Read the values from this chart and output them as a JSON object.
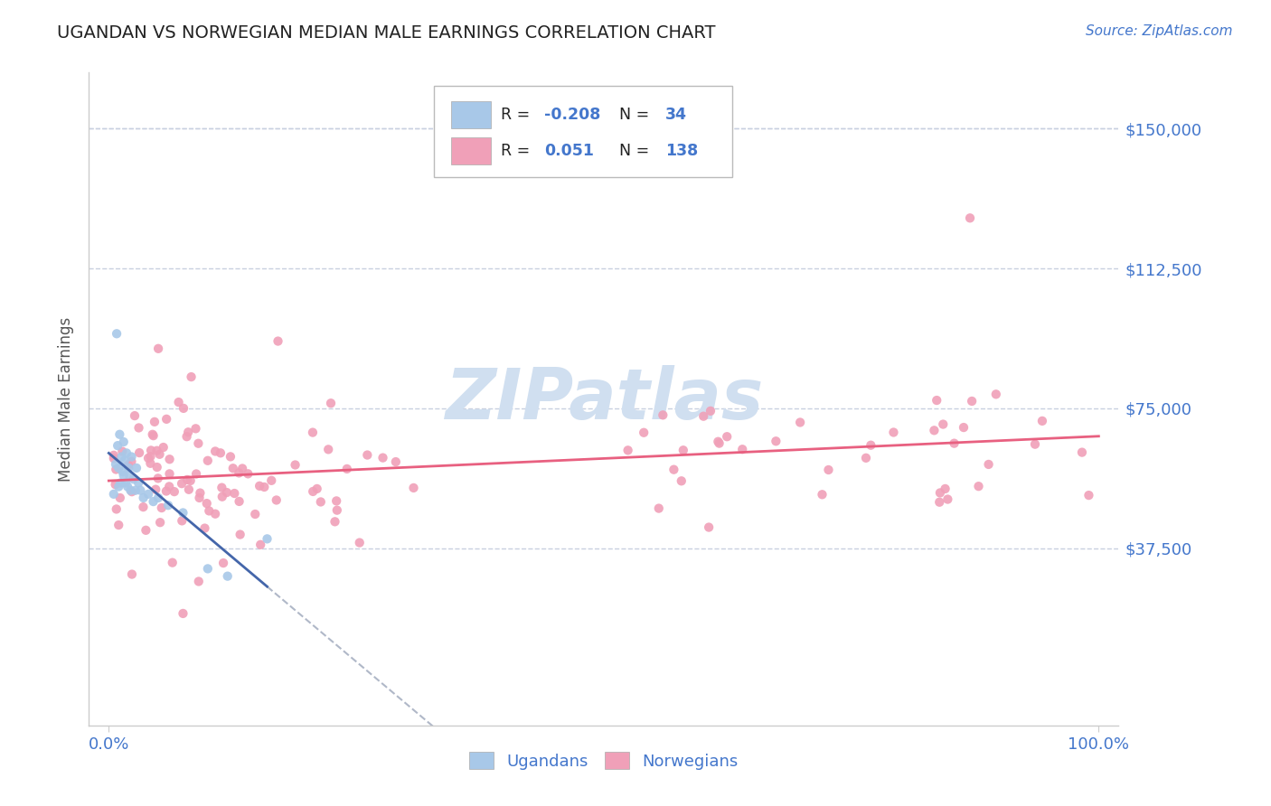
{
  "title": "UGANDAN VS NORWEGIAN MEDIAN MALE EARNINGS CORRELATION CHART",
  "source": "Source: ZipAtlas.com",
  "ylabel": "Median Male Earnings",
  "yticks": [
    0,
    37500,
    75000,
    112500,
    150000
  ],
  "ytick_labels": [
    "",
    "$37,500",
    "$75,000",
    "$112,500",
    "$150,000"
  ],
  "xlim": [
    -0.02,
    1.02
  ],
  "ylim": [
    -10000,
    165000
  ],
  "ugandan_color": "#a8c8e8",
  "norwegian_color": "#f0a0b8",
  "ugandan_line_color": "#4466aa",
  "norwegian_line_color": "#e86080",
  "title_color": "#222222",
  "label_color": "#4477cc",
  "watermark_color": "#d0dff0",
  "background_color": "#ffffff",
  "grid_color": "#c8d0e0",
  "spine_color": "#cccccc"
}
